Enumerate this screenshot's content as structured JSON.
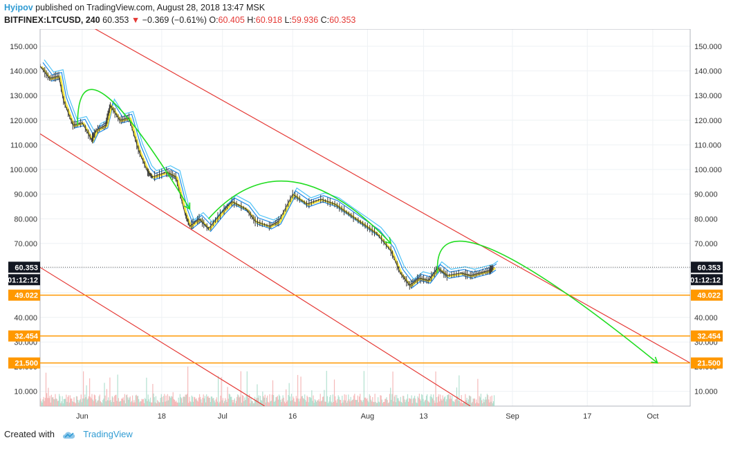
{
  "header": {
    "author": "Hyipov",
    "published": "published on TradingView.com, August 28, 2018 13:47 MSK",
    "symbol": "BITFINEX:LTCUSD, 240",
    "last": "60.353",
    "arrow": "▼",
    "change": "−0.369 (−0.61%)",
    "o_label": "O:",
    "o": "60.405",
    "h_label": "H:",
    "h": "60.918",
    "l_label": "L:",
    "l": "59.936",
    "c_label": "C:",
    "c": "60.353"
  },
  "footer": {
    "created": "Created with",
    "brand": "TradingView"
  },
  "colors": {
    "channel": "#e53935",
    "arc": "#22dd22",
    "level": "#ff9800",
    "ma_yellow": "#f5e642",
    "ma_blue": "#1e88e5",
    "ma_cyan": "#4fc3f7",
    "label_dark": "#131722"
  },
  "chart_data": {
    "type": "line",
    "symbol": "BITFINEX:LTCUSD",
    "interval": "240",
    "ylim": [
      4,
      157
    ],
    "y_ticks": [
      10,
      20,
      30,
      40,
      50,
      60,
      70,
      80,
      90,
      100,
      110,
      120,
      130,
      140,
      150
    ],
    "y_tick_labels": [
      "10.000",
      "20.000",
      "30.000",
      "40.000",
      "50.000",
      "60.000",
      "70.000",
      "80.000",
      "90.000",
      "100.000",
      "110.000",
      "120.000",
      "130.000",
      "140.000",
      "150.000"
    ],
    "x_range": [
      "2018-05-23",
      "2018-10-09"
    ],
    "x_ticks": [
      {
        "date": "2018-06-01",
        "label": "Jun"
      },
      {
        "date": "2018-06-18",
        "label": "18"
      },
      {
        "date": "2018-07-01",
        "label": "Jul"
      },
      {
        "date": "2018-07-16",
        "label": "16"
      },
      {
        "date": "2018-08-01",
        "label": "Aug"
      },
      {
        "date": "2018-08-13",
        "label": "13"
      },
      {
        "date": "2018-09-01",
        "label": "Sep"
      },
      {
        "date": "2018-09-17",
        "label": "17"
      },
      {
        "date": "2018-10-01",
        "label": "Oct"
      }
    ],
    "price_series": [
      {
        "date": "2018-05-23",
        "value": 142
      },
      {
        "date": "2018-05-25",
        "value": 137
      },
      {
        "date": "2018-05-27",
        "value": 138
      },
      {
        "date": "2018-05-28",
        "value": 128
      },
      {
        "date": "2018-05-30",
        "value": 118
      },
      {
        "date": "2018-06-01",
        "value": 119
      },
      {
        "date": "2018-06-03",
        "value": 112
      },
      {
        "date": "2018-06-04",
        "value": 116
      },
      {
        "date": "2018-06-06",
        "value": 118
      },
      {
        "date": "2018-06-07",
        "value": 126
      },
      {
        "date": "2018-06-09",
        "value": 120
      },
      {
        "date": "2018-06-11",
        "value": 121
      },
      {
        "date": "2018-06-13",
        "value": 108
      },
      {
        "date": "2018-06-15",
        "value": 99
      },
      {
        "date": "2018-06-16",
        "value": 97
      },
      {
        "date": "2018-06-19",
        "value": 99
      },
      {
        "date": "2018-06-21",
        "value": 97
      },
      {
        "date": "2018-06-23",
        "value": 82
      },
      {
        "date": "2018-06-24",
        "value": 77
      },
      {
        "date": "2018-06-26",
        "value": 80
      },
      {
        "date": "2018-06-28",
        "value": 76
      },
      {
        "date": "2018-07-01",
        "value": 83
      },
      {
        "date": "2018-07-03",
        "value": 87
      },
      {
        "date": "2018-07-06",
        "value": 84
      },
      {
        "date": "2018-07-08",
        "value": 79
      },
      {
        "date": "2018-07-11",
        "value": 77
      },
      {
        "date": "2018-07-13",
        "value": 79
      },
      {
        "date": "2018-07-16",
        "value": 90
      },
      {
        "date": "2018-07-19",
        "value": 86
      },
      {
        "date": "2018-07-22",
        "value": 88
      },
      {
        "date": "2018-07-25",
        "value": 86
      },
      {
        "date": "2018-07-28",
        "value": 82
      },
      {
        "date": "2018-07-31",
        "value": 78
      },
      {
        "date": "2018-08-03",
        "value": 74
      },
      {
        "date": "2018-08-06",
        "value": 67
      },
      {
        "date": "2018-08-08",
        "value": 58
      },
      {
        "date": "2018-08-10",
        "value": 53
      },
      {
        "date": "2018-08-12",
        "value": 56
      },
      {
        "date": "2018-08-14",
        "value": 55
      },
      {
        "date": "2018-08-16",
        "value": 60
      },
      {
        "date": "2018-08-18",
        "value": 57
      },
      {
        "date": "2018-08-21",
        "value": 58
      },
      {
        "date": "2018-08-23",
        "value": 57
      },
      {
        "date": "2018-08-25",
        "value": 58
      },
      {
        "date": "2018-08-27",
        "value": 59
      },
      {
        "date": "2018-08-28",
        "value": 60.353
      }
    ],
    "last_price": 60.353,
    "last_price_label": "60.353",
    "countdown_label": "01:12:12",
    "horizontal_levels": [
      {
        "value": 49.022,
        "label": "49.022"
      },
      {
        "value": 32.454,
        "label": "32.454"
      },
      {
        "value": 21.5,
        "label": "21.500"
      }
    ],
    "channel_lines": [
      {
        "from": {
          "date": "2018-06-01",
          "value": 160
        },
        "to": {
          "date": "2018-10-09",
          "value": 21.5
        }
      },
      {
        "from": {
          "date": "2018-05-23",
          "value": 114.5
        },
        "to": {
          "date": "2018-08-23",
          "value": 4
        }
      },
      {
        "from": {
          "date": "2018-05-23",
          "value": 60.3
        },
        "to": {
          "date": "2018-07-10",
          "value": 4
        }
      }
    ],
    "projection_arcs": [
      [
        {
          "date": "2018-05-31",
          "value": 118
        },
        {
          "date": "2018-06-06",
          "value": 130
        },
        {
          "date": "2018-06-24",
          "value": 84
        }
      ],
      [
        {
          "date": "2018-06-28",
          "value": 80
        },
        {
          "date": "2018-07-16",
          "value": 95
        },
        {
          "date": "2018-08-06",
          "value": 70
        }
      ],
      [
        {
          "date": "2018-08-16",
          "value": 58
        },
        {
          "date": "2018-08-27",
          "value": 68
        },
        {
          "date": "2018-10-02",
          "value": 21.5
        }
      ]
    ]
  }
}
